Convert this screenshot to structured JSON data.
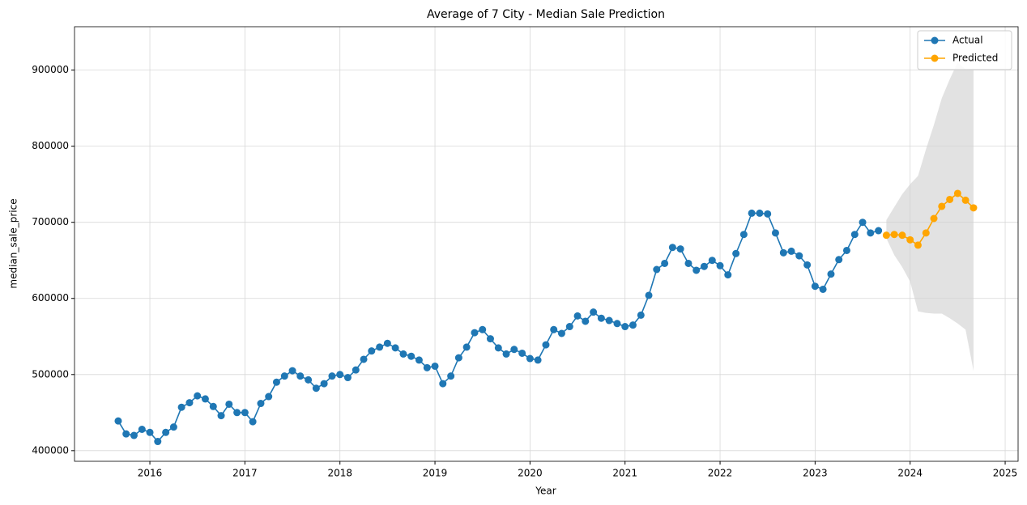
{
  "chart_data": {
    "type": "line",
    "title": "Average of 7 City - Median Sale Prediction",
    "x_label": "Year",
    "y_label": "median_sale_price",
    "xlim": [
      2015.207,
      2025.136
    ],
    "xticks": [
      2016,
      2017,
      2018,
      2019,
      2020,
      2021,
      2022,
      2023,
      2024,
      2025
    ],
    "ylim": [
      386000,
      957000
    ],
    "yticks": [
      400000,
      500000,
      600000,
      700000,
      800000,
      900000
    ],
    "grid": true,
    "legend": "upper right",
    "series": [
      {
        "name": "Actual",
        "color": "#1f77b4",
        "x": [
          2015.667,
          2015.75,
          2015.833,
          2015.917,
          2016,
          2016.083,
          2016.167,
          2016.25,
          2016.333,
          2016.417,
          2016.5,
          2016.583,
          2016.667,
          2016.75,
          2016.833,
          2016.917,
          2017,
          2017.083,
          2017.167,
          2017.25,
          2017.333,
          2017.417,
          2017.5,
          2017.583,
          2017.667,
          2017.75,
          2017.833,
          2017.917,
          2018,
          2018.083,
          2018.167,
          2018.25,
          2018.333,
          2018.417,
          2018.5,
          2018.583,
          2018.667,
          2018.75,
          2018.833,
          2018.917,
          2019,
          2019.083,
          2019.167,
          2019.25,
          2019.333,
          2019.417,
          2019.5,
          2019.583,
          2019.667,
          2019.75,
          2019.833,
          2019.917,
          2020,
          2020.083,
          2020.167,
          2020.25,
          2020.333,
          2020.417,
          2020.5,
          2020.583,
          2020.667,
          2020.75,
          2020.833,
          2020.917,
          2021,
          2021.083,
          2021.167,
          2021.25,
          2021.333,
          2021.417,
          2021.5,
          2021.583,
          2021.667,
          2021.75,
          2021.833,
          2021.917,
          2022,
          2022.083,
          2022.167,
          2022.25,
          2022.333,
          2022.417,
          2022.5,
          2022.583,
          2022.667,
          2022.75,
          2022.833,
          2022.917,
          2023,
          2023.083,
          2023.167,
          2023.25,
          2023.333,
          2023.417,
          2023.5,
          2023.583,
          2023.667
        ],
        "values": [
          439000,
          422000,
          420000,
          428000,
          424000,
          412000,
          424000,
          431000,
          457000,
          463000,
          472000,
          468000,
          458000,
          446000,
          461000,
          450000,
          450000,
          438000,
          462000,
          471000,
          490000,
          498000,
          505000,
          498000,
          493000,
          482000,
          488000,
          498000,
          500000,
          496000,
          506000,
          520000,
          531000,
          536000,
          541000,
          535000,
          527000,
          524000,
          519000,
          509000,
          511000,
          488000,
          498000,
          522000,
          536000,
          555000,
          559000,
          547000,
          535000,
          527000,
          533000,
          528000,
          521000,
          519000,
          539000,
          559000,
          554000,
          563000,
          577000,
          570000,
          582000,
          574000,
          571000,
          567000,
          563000,
          565000,
          578000,
          604000,
          638000,
          646000,
          667000,
          665000,
          646000,
          637000,
          642000,
          650000,
          643000,
          631000,
          659000,
          684000,
          712000,
          712000,
          711000,
          686000,
          660000,
          662000,
          656000,
          644000,
          616000,
          612000,
          632000,
          651000,
          663000,
          684000,
          700000,
          686000,
          689000
        ]
      },
      {
        "name": "Predicted",
        "color": "#ffa500",
        "x": [
          2023.75,
          2023.833,
          2023.917,
          2024,
          2024.083,
          2024.167,
          2024.25,
          2024.333,
          2024.417,
          2024.5,
          2024.583,
          2024.667
        ],
        "values": [
          683000,
          684000,
          683000,
          677000,
          670000,
          686000,
          705000,
          721000,
          730000,
          738000,
          729000,
          719000
        ]
      }
    ],
    "band": {
      "color": "#d3d3d3",
      "upper": [
        703000,
        720000,
        737000,
        750000,
        761000,
        796000,
        828000,
        863000,
        888000,
        910000,
        901000,
        902000
      ],
      "lower": [
        679000,
        657000,
        641000,
        622000,
        583000,
        581000,
        580000,
        580000,
        574000,
        567000,
        559000,
        505000
      ]
    }
  }
}
